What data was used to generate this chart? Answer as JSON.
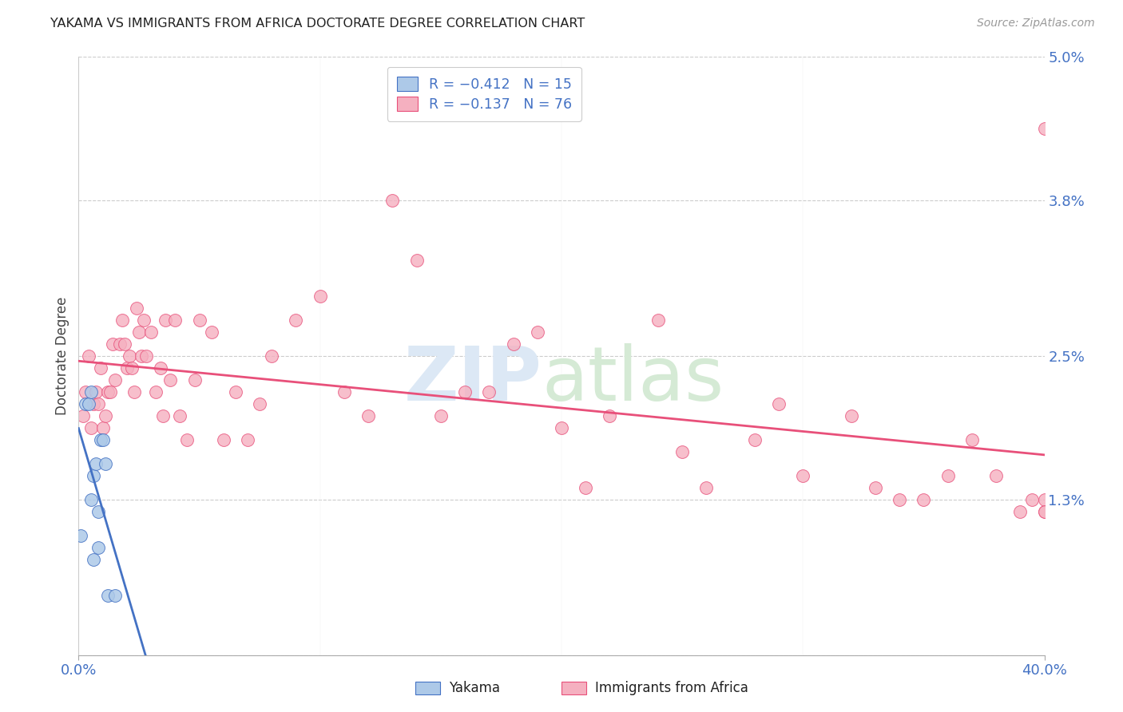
{
  "title": "YAKAMA VS IMMIGRANTS FROM AFRICA DOCTORATE DEGREE CORRELATION CHART",
  "source": "Source: ZipAtlas.com",
  "ylabel": "Doctorate Degree",
  "yticks_pct": [
    0.0,
    1.3,
    2.5,
    3.8,
    5.0
  ],
  "ytick_labels": [
    "",
    "1.3%",
    "2.5%",
    "3.8%",
    "5.0%"
  ],
  "xlim_pct": [
    0.0,
    40.0
  ],
  "ylim_pct": [
    0.0,
    5.0
  ],
  "color_yakama_fill": "#adc9e8",
  "color_yakama_edge": "#4472c4",
  "color_africa_fill": "#f5b0c0",
  "color_africa_edge": "#e8507a",
  "color_line_yakama": "#4472c4",
  "color_line_africa": "#e8507a",
  "color_axis_labels": "#4472c4",
  "background": "#ffffff",
  "grid_color": "#cccccc",
  "yakama_x": [
    0.1,
    0.3,
    0.4,
    0.5,
    0.5,
    0.6,
    0.6,
    0.7,
    0.8,
    0.8,
    0.9,
    1.0,
    1.1,
    1.2,
    1.5
  ],
  "yakama_y": [
    1.0,
    2.1,
    2.1,
    1.3,
    2.2,
    0.8,
    1.5,
    1.6,
    1.2,
    0.9,
    1.8,
    1.8,
    1.6,
    0.5,
    0.5
  ],
  "africa_x": [
    0.2,
    0.3,
    0.4,
    0.5,
    0.6,
    0.7,
    0.8,
    0.9,
    1.0,
    1.1,
    1.2,
    1.3,
    1.4,
    1.5,
    1.7,
    1.8,
    1.9,
    2.0,
    2.1,
    2.2,
    2.3,
    2.4,
    2.5,
    2.6,
    2.7,
    2.8,
    3.0,
    3.2,
    3.4,
    3.5,
    3.6,
    3.8,
    4.0,
    4.2,
    4.5,
    4.8,
    5.0,
    5.5,
    6.0,
    6.5,
    7.0,
    7.5,
    8.0,
    9.0,
    10.0,
    11.0,
    12.0,
    13.0,
    14.0,
    15.0,
    16.0,
    17.0,
    18.0,
    19.0,
    20.0,
    21.0,
    22.0,
    24.0,
    25.0,
    26.0,
    28.0,
    29.0,
    30.0,
    32.0,
    33.0,
    34.0,
    35.0,
    36.0,
    37.0,
    38.0,
    39.0,
    39.5,
    40.0,
    40.0,
    40.0,
    40.0
  ],
  "africa_y": [
    2.0,
    2.2,
    2.5,
    1.9,
    2.1,
    2.2,
    2.1,
    2.4,
    1.9,
    2.0,
    2.2,
    2.2,
    2.6,
    2.3,
    2.6,
    2.8,
    2.6,
    2.4,
    2.5,
    2.4,
    2.2,
    2.9,
    2.7,
    2.5,
    2.8,
    2.5,
    2.7,
    2.2,
    2.4,
    2.0,
    2.8,
    2.3,
    2.8,
    2.0,
    1.8,
    2.3,
    2.8,
    2.7,
    1.8,
    2.2,
    1.8,
    2.1,
    2.5,
    2.8,
    3.0,
    2.2,
    2.0,
    3.8,
    3.3,
    2.0,
    2.2,
    2.2,
    2.6,
    2.7,
    1.9,
    1.4,
    2.0,
    2.8,
    1.7,
    1.4,
    1.8,
    2.1,
    1.5,
    2.0,
    1.4,
    1.3,
    1.3,
    1.5,
    1.8,
    1.5,
    1.2,
    1.3,
    1.2,
    1.3,
    1.2,
    4.4
  ]
}
